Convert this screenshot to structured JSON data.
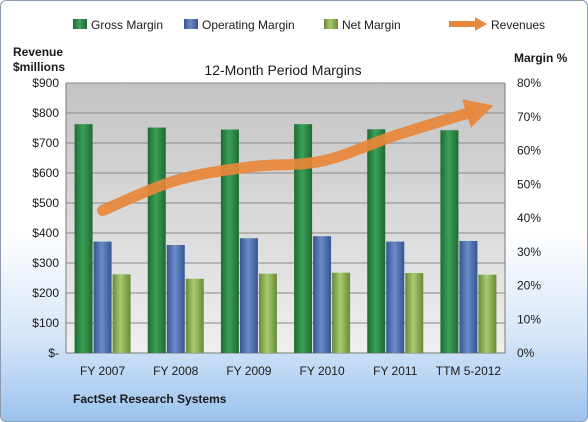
{
  "chart_data": {
    "type": "bar",
    "title": "12-Month Period Margins",
    "categories": [
      "FY 2007",
      "FY 2008",
      "FY 2009",
      "FY 2010",
      "FY 2011",
      "TTM 5-2012"
    ],
    "series": [
      {
        "name": "Gross Margin",
        "axis": "right",
        "values": [
          67.8,
          66.8,
          66.2,
          67.8,
          66.3,
          66.0
        ]
      },
      {
        "name": "Operating Margin",
        "axis": "right",
        "values": [
          33.0,
          32.0,
          34.0,
          34.6,
          33.0,
          33.2
        ]
      },
      {
        "name": "Net Margin",
        "axis": "right",
        "values": [
          23.3,
          22.0,
          23.5,
          23.8,
          23.7,
          23.2
        ]
      },
      {
        "name": "Revenues",
        "type": "line",
        "axis": "left",
        "values": [
          475,
          575,
          620,
          640,
          725,
          800
        ]
      }
    ],
    "y_left": {
      "label_line1": "Revenue",
      "label_line2": "$millions",
      "ylim": [
        0,
        900
      ],
      "ticks": [
        "$-",
        "$100",
        "$200",
        "$300",
        "$400",
        "$500",
        "$600",
        "$700",
        "$800",
        "$900"
      ]
    },
    "y_right": {
      "label": "Margin %",
      "ylim": [
        0,
        80
      ],
      "ticks": [
        "0%",
        "10%",
        "20%",
        "30%",
        "40%",
        "50%",
        "60%",
        "70%",
        "80%"
      ]
    },
    "legend_position": "top",
    "grid": true,
    "footer": "FactSet Research Systems",
    "colors": {
      "gross": "#2f8b47",
      "operating": "#4f73b2",
      "net": "#8eb456",
      "revenues": "#e8873a",
      "plot_bg_top": "#c9c9c9",
      "plot_bg_bottom": "#ededed"
    }
  }
}
